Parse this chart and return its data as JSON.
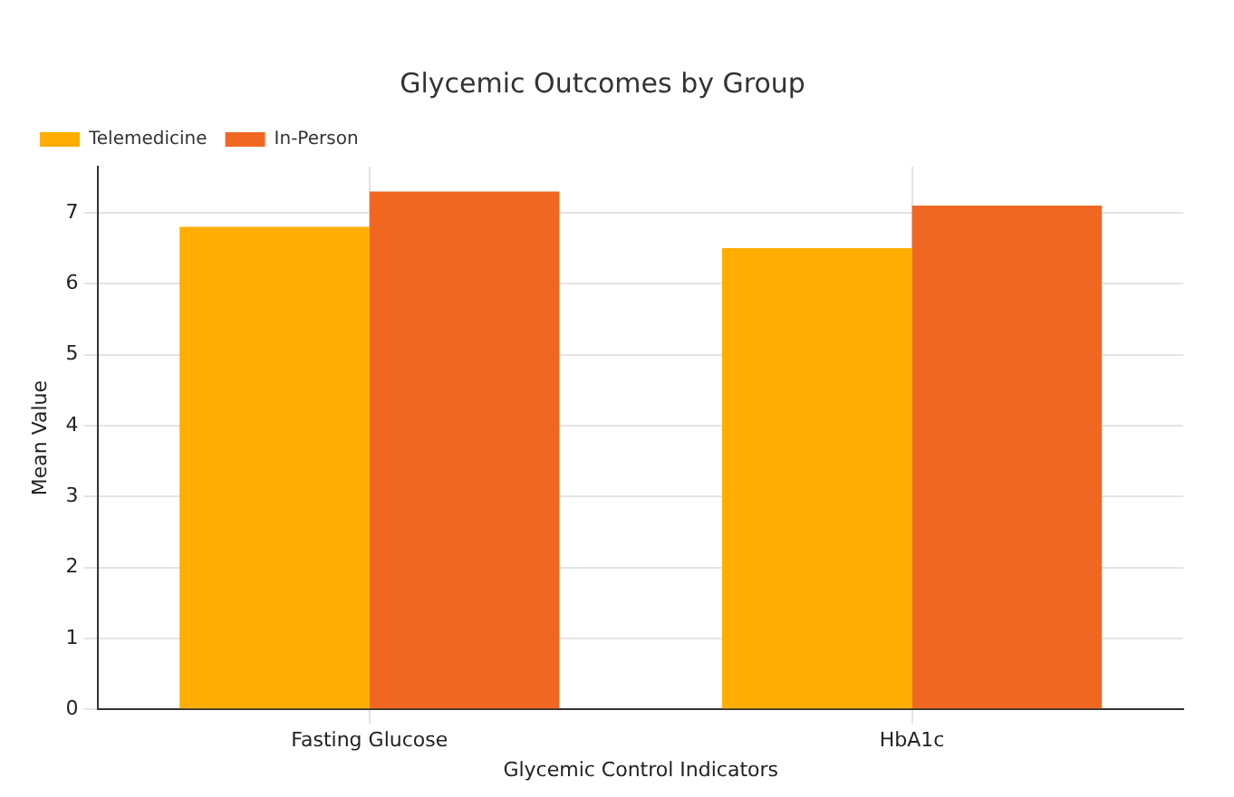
{
  "chart_data": {
    "type": "bar",
    "title": "Glycemic Outcomes by Group",
    "xlabel": "Glycemic Control Indicators",
    "ylabel": "Mean Value",
    "categories": [
      "Fasting Glucose",
      "HbA1c"
    ],
    "series": [
      {
        "name": "Telemedicine",
        "color": "#ffad00",
        "values": [
          6.8,
          6.5
        ]
      },
      {
        "name": "In-Person",
        "color": "#f06722",
        "values": [
          7.3,
          7.1
        ]
      }
    ],
    "ylim": [
      0,
      7.65
    ],
    "yticks": [
      0,
      1,
      2,
      3,
      4,
      5,
      6,
      7
    ],
    "grid": true,
    "legend": "top left"
  }
}
